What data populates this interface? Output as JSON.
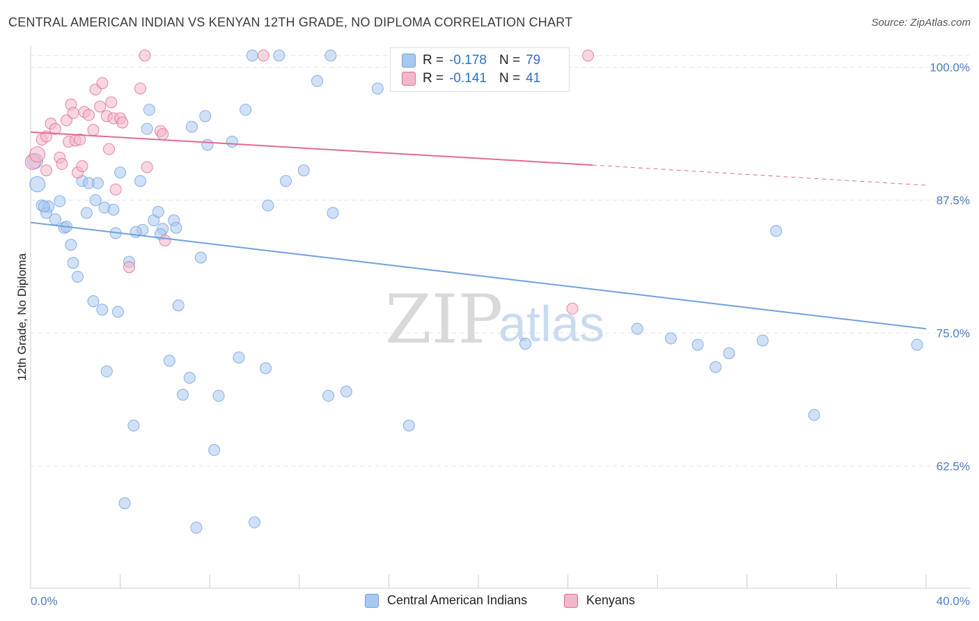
{
  "header": {
    "title": "CENTRAL AMERICAN INDIAN VS KENYAN 12TH GRADE, NO DIPLOMA CORRELATION CHART",
    "source": "Source: ZipAtlas.com"
  },
  "legend": {
    "rows": [
      {
        "r_label": "R =",
        "r_value": "-0.178",
        "n_label": "N =",
        "n_value": "79",
        "color": "#a9c8f0"
      },
      {
        "r_label": "R =",
        "r_value": "-0.141",
        "n_label": "N =",
        "n_value": "41",
        "color": "#f4b6c9"
      }
    ]
  },
  "bottom_legend": {
    "items": [
      {
        "label": "Central American Indians",
        "color": "#a9c8f0"
      },
      {
        "label": "Kenyans",
        "color": "#f4b6c9"
      }
    ]
  },
  "watermark": {
    "zip": "ZIP",
    "atlas": "atlas"
  },
  "chart_data": {
    "type": "scatter",
    "title": "CENTRAL AMERICAN INDIAN VS KENYAN 12TH GRADE, NO DIPLOMA CORRELATION CHART",
    "xlabel": "",
    "ylabel": "12th Grade, No Diploma",
    "xlim": [
      0,
      40
    ],
    "ylim": [
      51,
      102
    ],
    "x_tick_labels": [
      "0.0%",
      "40.0%"
    ],
    "y_ticks": [
      100,
      87.5,
      75,
      62.5
    ],
    "y_tick_labels": [
      "100.0%",
      "87.5%",
      "75.0%",
      "62.5%"
    ],
    "grid": true,
    "legend_position": "top-center",
    "series": [
      {
        "name": "Central American Indians",
        "color": "#6f9fe0",
        "fill": "#a9c8f0",
        "trend": {
          "x": [
            0,
            40
          ],
          "y": [
            85.4,
            75.4
          ]
        },
        "points": [
          [
            0.2,
            91.2
          ],
          [
            0.3,
            89.0
          ],
          [
            0.5,
            87.0
          ],
          [
            0.7,
            86.3
          ],
          [
            0.8,
            86.9
          ],
          [
            1.1,
            85.7
          ],
          [
            1.3,
            87.4
          ],
          [
            1.5,
            84.9
          ],
          [
            1.8,
            83.3
          ],
          [
            1.9,
            81.6
          ],
          [
            2.1,
            80.3
          ],
          [
            2.3,
            89.3
          ],
          [
            2.5,
            86.3
          ],
          [
            2.6,
            89.1
          ],
          [
            2.8,
            78.0
          ],
          [
            2.9,
            87.5
          ],
          [
            3.2,
            77.2
          ],
          [
            3.3,
            86.8
          ],
          [
            3.4,
            71.4
          ],
          [
            3.7,
            86.6
          ],
          [
            3.8,
            84.4
          ],
          [
            3.9,
            77.0
          ],
          [
            4.0,
            90.1
          ],
          [
            4.2,
            59.0
          ],
          [
            4.4,
            81.7
          ],
          [
            4.6,
            66.3
          ],
          [
            4.9,
            89.3
          ],
          [
            5.0,
            84.7
          ],
          [
            5.2,
            94.2
          ],
          [
            5.3,
            96.0
          ],
          [
            5.5,
            85.6
          ],
          [
            5.7,
            86.4
          ],
          [
            5.9,
            84.8
          ],
          [
            6.2,
            72.4
          ],
          [
            6.4,
            85.6
          ],
          [
            6.5,
            84.9
          ],
          [
            6.6,
            77.6
          ],
          [
            6.8,
            69.2
          ],
          [
            7.1,
            70.8
          ],
          [
            7.2,
            94.4
          ],
          [
            7.4,
            56.7
          ],
          [
            7.6,
            82.1
          ],
          [
            7.8,
            95.4
          ],
          [
            7.9,
            92.7
          ],
          [
            8.2,
            64.0
          ],
          [
            8.4,
            69.1
          ],
          [
            9.0,
            93.0
          ],
          [
            9.3,
            72.7
          ],
          [
            9.6,
            96.0
          ],
          [
            9.9,
            101.1
          ],
          [
            10.0,
            57.2
          ],
          [
            10.5,
            71.7
          ],
          [
            10.6,
            87.0
          ],
          [
            11.1,
            101.1
          ],
          [
            11.4,
            89.3
          ],
          [
            12.2,
            90.3
          ],
          [
            12.8,
            98.7
          ],
          [
            13.3,
            69.1
          ],
          [
            13.4,
            101.1
          ],
          [
            13.5,
            86.3
          ],
          [
            14.1,
            69.5
          ],
          [
            15.5,
            98.0
          ],
          [
            16.9,
            66.3
          ],
          [
            20.0,
            101.1
          ],
          [
            22.1,
            74.0
          ],
          [
            27.1,
            75.4
          ],
          [
            28.6,
            74.5
          ],
          [
            29.8,
            73.9
          ],
          [
            30.6,
            71.8
          ],
          [
            31.2,
            73.1
          ],
          [
            32.7,
            74.3
          ],
          [
            33.3,
            84.6
          ],
          [
            35.0,
            67.3
          ],
          [
            39.6,
            73.9
          ],
          [
            0.6,
            86.9
          ],
          [
            1.6,
            85.0
          ],
          [
            3.0,
            89.1
          ],
          [
            4.7,
            84.5
          ],
          [
            5.8,
            84.3
          ]
        ]
      },
      {
        "name": "Kenyans",
        "color": "#e06a93",
        "fill": "#f4b6c9",
        "trend": {
          "x": [
            0,
            25.1
          ],
          "y": [
            93.9,
            90.8
          ],
          "dashed_to": {
            "x": 40,
            "y": 88.9
          }
        },
        "points": [
          [
            0.1,
            91.1
          ],
          [
            0.3,
            91.8
          ],
          [
            0.5,
            93.2
          ],
          [
            0.7,
            93.5
          ],
          [
            0.7,
            90.3
          ],
          [
            0.9,
            94.7
          ],
          [
            1.1,
            94.2
          ],
          [
            1.3,
            91.5
          ],
          [
            1.4,
            90.9
          ],
          [
            1.6,
            95.0
          ],
          [
            1.7,
            93.0
          ],
          [
            1.8,
            96.5
          ],
          [
            1.9,
            95.7
          ],
          [
            2.0,
            93.1
          ],
          [
            2.1,
            90.1
          ],
          [
            2.2,
            93.2
          ],
          [
            2.3,
            90.7
          ],
          [
            2.4,
            95.8
          ],
          [
            2.6,
            95.5
          ],
          [
            2.8,
            94.1
          ],
          [
            2.9,
            97.9
          ],
          [
            3.1,
            96.3
          ],
          [
            3.2,
            98.5
          ],
          [
            3.4,
            95.4
          ],
          [
            3.5,
            92.3
          ],
          [
            3.6,
            96.7
          ],
          [
            3.7,
            95.2
          ],
          [
            3.8,
            88.5
          ],
          [
            4.0,
            95.2
          ],
          [
            4.1,
            94.8
          ],
          [
            4.4,
            81.2
          ],
          [
            4.9,
            98.0
          ],
          [
            5.1,
            101.1
          ],
          [
            5.2,
            90.6
          ],
          [
            5.8,
            94.0
          ],
          [
            5.9,
            93.7
          ],
          [
            6.0,
            83.7
          ],
          [
            10.4,
            101.1
          ],
          [
            20.1,
            101.1
          ],
          [
            24.2,
            77.3
          ],
          [
            24.9,
            101.1
          ]
        ]
      }
    ]
  }
}
